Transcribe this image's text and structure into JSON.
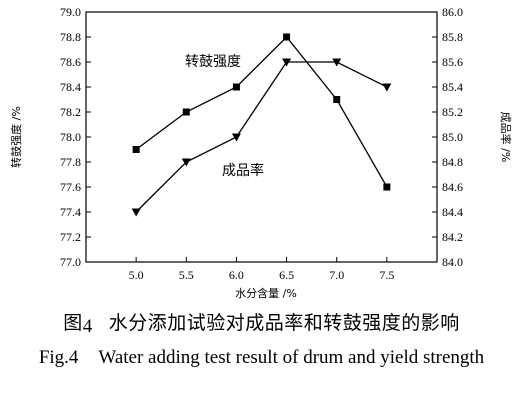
{
  "chart_data": {
    "type": "line",
    "x": [
      5.0,
      5.5,
      6.0,
      6.5,
      7.0,
      7.5
    ],
    "x_tick_labels": [
      "5.0",
      "5.5",
      "6.0",
      "6.5",
      "7.0",
      "7.5"
    ],
    "xlim": [
      4.5,
      8.0
    ],
    "xlabel": "水分含量 /%",
    "ylabel_left": "转鼓强度 /%",
    "ylabel_right": "成品率 /%",
    "ylim_left": [
      77.0,
      79.0
    ],
    "ylim_right": [
      84.0,
      86.0
    ],
    "y_left_tick_labels": [
      "77.0",
      "77.2",
      "77.4",
      "77.6",
      "77.8",
      "78.0",
      "78.2",
      "78.4",
      "78.6",
      "78.8",
      "79.0"
    ],
    "y_right_tick_labels": [
      "84.0",
      "84.2",
      "84.4",
      "84.6",
      "84.8",
      "85.0",
      "85.2",
      "85.4",
      "85.6",
      "85.8",
      "86.0"
    ],
    "grid": false,
    "series": [
      {
        "name": "转鼓强度",
        "axis": "left",
        "marker": "square",
        "values": [
          77.9,
          78.2,
          78.4,
          78.8,
          78.3,
          77.6
        ]
      },
      {
        "name": "成品率",
        "axis": "right",
        "marker": "triangle-down",
        "values": [
          84.4,
          84.8,
          85.0,
          85.6,
          85.6,
          85.4
        ]
      }
    ]
  },
  "caption": {
    "zh_prefix": "图",
    "zh_number": "4",
    "zh_text": "水分添加试验对成品率和转鼓强度的影响",
    "en_prefix": "Fig.4",
    "en_text": "Water adding test result of drum and yield strength"
  }
}
